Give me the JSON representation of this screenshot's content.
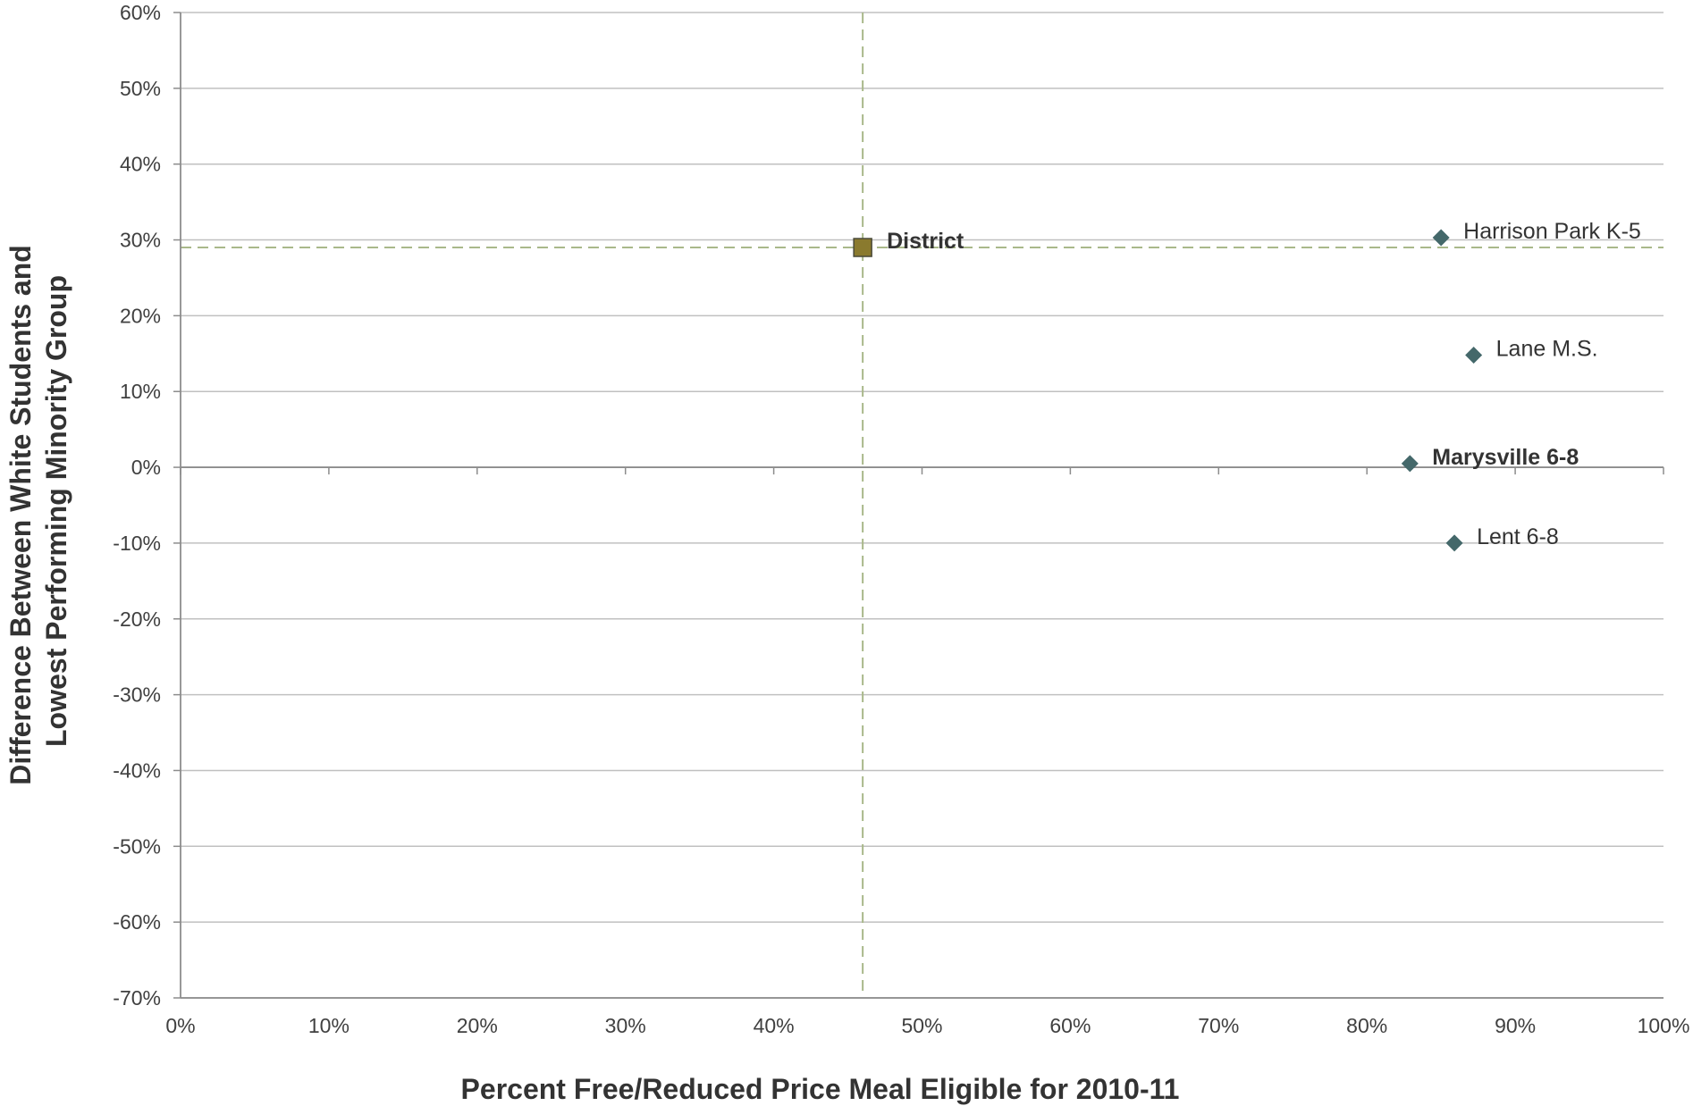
{
  "chart_data": {
    "type": "scatter",
    "xlabel": "Percent Free/Reduced Price Meal Eligible for 2010-11",
    "ylabel_lines": [
      "Difference Between White Students and",
      "Lowest Performing Minority Group"
    ],
    "xlim": [
      0,
      100
    ],
    "ylim": [
      -70,
      60
    ],
    "x_ticks": [
      0,
      10,
      20,
      30,
      40,
      50,
      60,
      70,
      80,
      90,
      100
    ],
    "y_ticks": [
      60,
      50,
      40,
      30,
      20,
      10,
      0,
      -10,
      -20,
      -30,
      -40,
      -50,
      -60,
      -70
    ],
    "x_tick_labels": [
      "0%",
      "10%",
      "20%",
      "30%",
      "40%",
      "50%",
      "60%",
      "70%",
      "80%",
      "90%",
      "100%"
    ],
    "y_tick_labels": [
      "60%",
      "50%",
      "40%",
      "30%",
      "20%",
      "10%",
      "0%",
      "-10%",
      "-20%",
      "-30%",
      "-40%",
      "-50%",
      "-60%",
      "-70%"
    ],
    "grid": "horizontal",
    "reference_lines": {
      "x": 46,
      "y": 29
    },
    "points": [
      {
        "label": "District",
        "x": 46,
        "y": 29,
        "marker": "square",
        "bold": true,
        "color": "#8a7a2e"
      },
      {
        "label": "Harrison Park K-5",
        "x": 85,
        "y": 30.3,
        "marker": "diamond",
        "bold": false,
        "color": "#44686a"
      },
      {
        "label": "Lane M.S.",
        "x": 87.2,
        "y": 14.8,
        "marker": "diamond",
        "bold": false,
        "color": "#44686a"
      },
      {
        "label": "Marysville 6-8",
        "x": 82.9,
        "y": 0.5,
        "marker": "diamond",
        "bold": true,
        "color": "#44686a"
      },
      {
        "label": "Lent 6-8",
        "x": 85.9,
        "y": -10,
        "marker": "diamond",
        "bold": false,
        "color": "#44686a"
      }
    ],
    "colors": {
      "grid": "#c0c0c0",
      "axis": "#8c8c8c",
      "reference": "#a9b88a"
    }
  }
}
